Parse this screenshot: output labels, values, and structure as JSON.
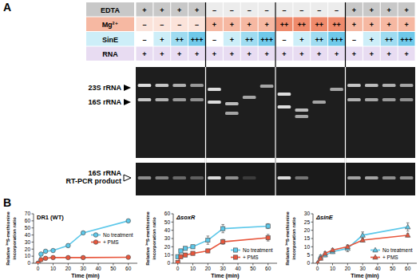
{
  "panel_a": {
    "label": "A",
    "rows": [
      {
        "name": "EDTA",
        "cells": [
          "+",
          "+",
          "+",
          "+",
          "–",
          "–",
          "–",
          "–",
          "–",
          "–",
          "–",
          "–",
          "+",
          "+",
          "+",
          "+"
        ]
      },
      {
        "name": "Mg²⁺",
        "cells": [
          "–",
          "–",
          "–",
          "–",
          "+",
          "+",
          "+",
          "+",
          "++",
          "++",
          "++",
          "++",
          "+",
          "+",
          "+",
          "+"
        ]
      },
      {
        "name": "SinE",
        "cells": [
          "–",
          "+",
          "++",
          "+++",
          "–",
          "+",
          "++",
          "+++",
          "–",
          "+",
          "++",
          "+++",
          "–",
          "+",
          "++",
          "+++"
        ]
      },
      {
        "name": "RNA",
        "cells": [
          "+",
          "+",
          "+",
          "+",
          "+",
          "+",
          "+",
          "+",
          "+",
          "+",
          "+",
          "+",
          "+",
          "+",
          "+",
          "+"
        ]
      }
    ],
    "band_labels": [
      "23S rRNA",
      "16S rRNA"
    ],
    "rt_pcr_label": [
      "16S rRNA",
      "RT-PCR product"
    ]
  },
  "panel_b_label": "B",
  "chart_data": [
    {
      "type": "line",
      "title": "DR1 (WT)",
      "xlabel": "Time (min)",
      "ylabel": [
        "Relative ³⁵S-methionine",
        "incorporation ratio"
      ],
      "x": [
        0,
        2,
        5,
        10,
        20,
        30,
        60
      ],
      "xlim": [
        -3,
        66
      ],
      "xticks": [
        0,
        10,
        20,
        30,
        40,
        50,
        60
      ],
      "ylim": [
        0,
        70
      ],
      "yticks": [
        0,
        10,
        20,
        30,
        40,
        50,
        60,
        70
      ],
      "legend": "center right",
      "marker": "circle",
      "series": [
        {
          "name": "No treatment",
          "color": "#5cc8ea",
          "values": [
            0,
            13,
            17,
            18,
            25,
            43,
            60
          ],
          "errors": [
            0.5,
            1,
            1,
            1,
            2.5,
            1.5,
            1
          ]
        },
        {
          "name": "+ PMS",
          "color": "#e8563c",
          "values": [
            0,
            5,
            7,
            8,
            8,
            8,
            8.5
          ],
          "errors": [
            0.3,
            0.5,
            0.5,
            0.5,
            0.5,
            0.5,
            0.5
          ]
        }
      ]
    },
    {
      "type": "line",
      "title": "ΔsoxR",
      "xlabel": "Time (min)",
      "ylabel": [
        "Relative ³⁵S-methionine",
        "incorporation ratio"
      ],
      "x": [
        0,
        2,
        5,
        10,
        20,
        30,
        60
      ],
      "xlim": [
        -3,
        66
      ],
      "xticks": [
        0,
        10,
        20,
        30,
        40,
        50,
        60
      ],
      "ylim": [
        0,
        60
      ],
      "yticks": [
        0,
        10,
        20,
        30,
        40,
        50,
        60
      ],
      "legend": "lower right",
      "marker": "square",
      "series": [
        {
          "name": "No treatment",
          "color": "#5cc8ea",
          "values": [
            8,
            15,
            18,
            20,
            28,
            42,
            45
          ],
          "errors": [
            1,
            2,
            2,
            2,
            5,
            5,
            3
          ]
        },
        {
          "name": "+ PMS",
          "color": "#e8563c",
          "values": [
            1,
            8,
            10,
            12,
            15,
            26,
            31
          ],
          "errors": [
            1,
            2,
            2,
            2,
            2,
            3,
            4
          ]
        }
      ]
    },
    {
      "type": "line",
      "title": "ΔsinE",
      "xlabel": "Time (min)",
      "ylabel": [
        "Relative ³⁵S-methionine",
        "incorporation ratio"
      ],
      "x": [
        0,
        2,
        5,
        10,
        20,
        30,
        60
      ],
      "xlim": [
        -3,
        66
      ],
      "xticks": [
        0,
        10,
        20,
        30,
        40,
        50,
        60
      ],
      "ylim": [
        0,
        30
      ],
      "yticks": [
        0,
        5,
        10,
        15,
        20,
        25,
        30
      ],
      "legend": "lower right",
      "marker": "triangle",
      "series": [
        {
          "name": "No treatment",
          "color": "#5cc8ea",
          "values": [
            0,
            4,
            5,
            7,
            9,
            17,
            22
          ],
          "errors": [
            0.5,
            1,
            1,
            1,
            2,
            2,
            2.5
          ]
        },
        {
          "name": "+ PMS",
          "color": "#e8563c",
          "values": [
            0,
            3,
            6,
            8,
            10,
            14,
            17
          ],
          "errors": [
            0.5,
            1,
            1,
            1,
            1,
            1,
            1
          ]
        }
      ]
    }
  ]
}
